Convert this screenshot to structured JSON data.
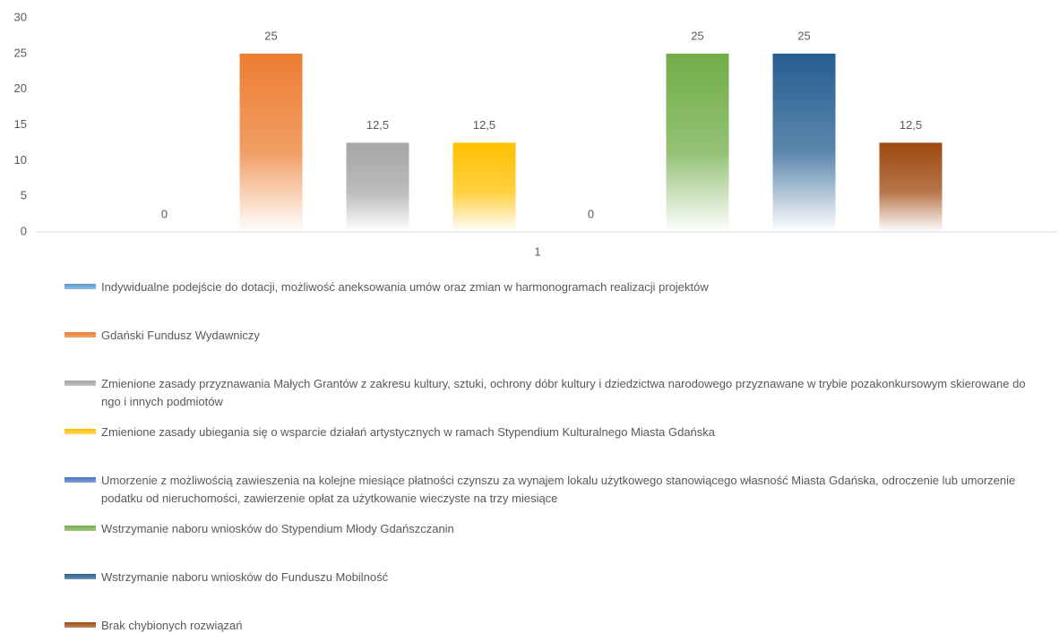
{
  "chart_data": {
    "type": "bar",
    "categories": [
      "1"
    ],
    "series": [
      {
        "name": "Indywidualne podejście do dotacji, możliwość aneksowania umów oraz zmian w harmonogramach realizacji projektów",
        "color": "#5b9bd5",
        "values": [
          0
        ]
      },
      {
        "name": "Gdański Fundusz Wydawniczy",
        "color": "#ed7d31",
        "values": [
          25
        ]
      },
      {
        "name": "Zmienione zasady przyznawania Małych Grantów z zakresu kultury, sztuki, ochrony dóbr kultury i dziedzictwa narodowego przyznawane w trybie pozakonkursowym skierowane do ngo i innych podmiotów",
        "color": "#a5a5a5",
        "values": [
          12.5
        ],
        "value_labels": [
          "12,5"
        ]
      },
      {
        "name": "Zmienione zasady ubiegania się o wsparcie działań artystycznych w ramach Stypendium Kulturalnego Miasta Gdańska",
        "color": "#ffc000",
        "values": [
          12.5
        ],
        "value_labels": [
          "12,5"
        ]
      },
      {
        "name": "Umorzenie z możliwością zawieszenia na kolejne miesiące płatności czynszu za wynajem lokalu użytkowego stanowiącego własność Miasta Gdańska, odroczenie lub umorzenie podatku od nieruchomości, zawierzenie opłat za użytkowanie wieczyste na trzy miesiące",
        "color": "#4472c4",
        "values": [
          0
        ]
      },
      {
        "name": "Wstrzymanie naboru wniosków do Stypendium Młody Gdańszczanin",
        "color": "#70ad47",
        "values": [
          25
        ]
      },
      {
        "name": "Wstrzymanie naboru wniosków do Funduszu Mobilność",
        "color": "#255e91",
        "values": [
          25
        ]
      },
      {
        "name": "Brak chybionych rozwiązań",
        "color": "#9e480e",
        "values": [
          12.5
        ],
        "value_labels": [
          "12,5"
        ]
      }
    ],
    "ylim": [
      0,
      30
    ],
    "yticks": [
      0,
      5,
      10,
      15,
      20,
      25,
      30
    ],
    "grid": false
  }
}
